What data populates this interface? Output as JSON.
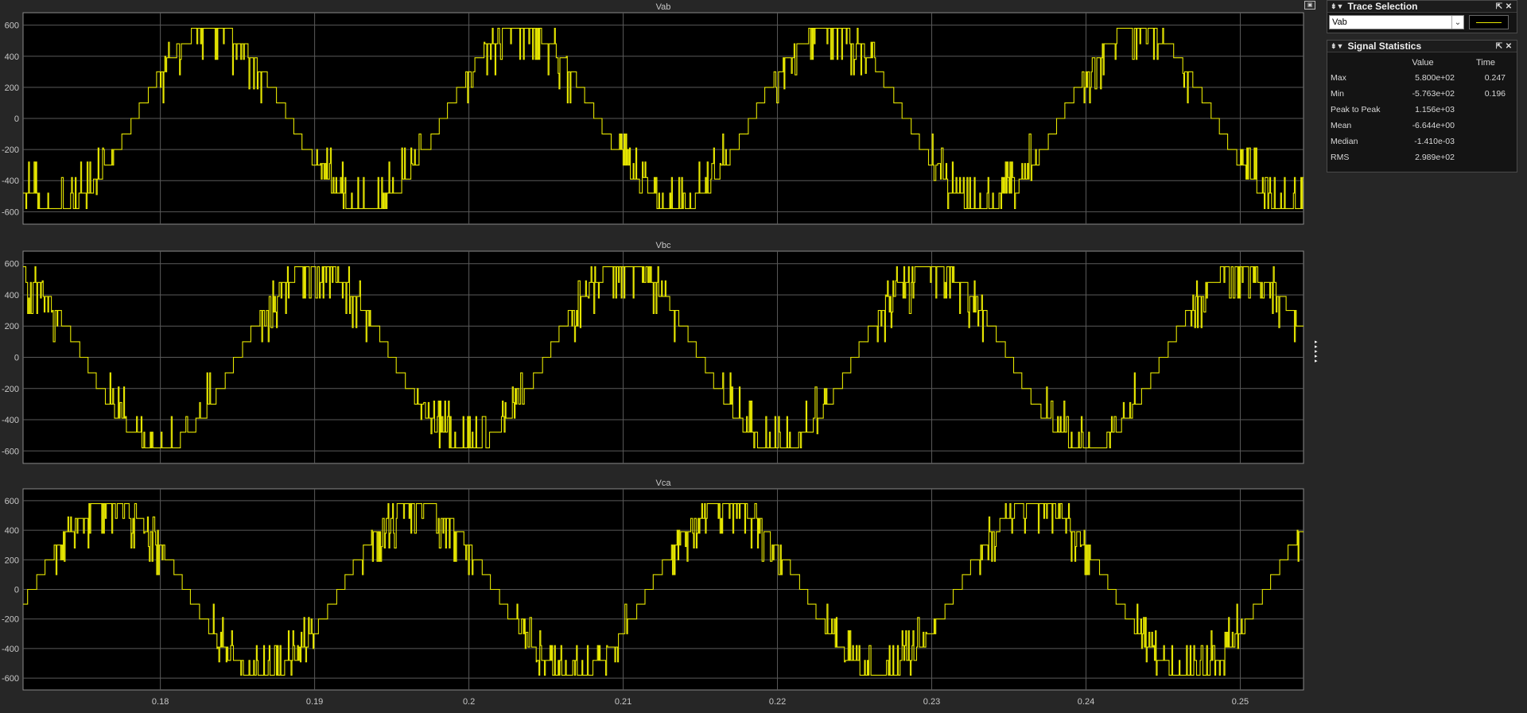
{
  "window": {
    "dock_toggle_icon": "dock-toggle-icon"
  },
  "trace_selection": {
    "title": "Trace Selection",
    "selected_signal": "Vab",
    "line_color": "#e6e600"
  },
  "signal_statistics": {
    "title": "Signal Statistics",
    "columns": [
      "",
      "Value",
      "Time"
    ],
    "rows": [
      {
        "label": "Max",
        "value": "5.800e+02",
        "time": "0.247"
      },
      {
        "label": "Min",
        "value": "-5.763e+02",
        "time": "0.196"
      },
      {
        "label": "Peak to Peak",
        "value": "1.156e+03",
        "time": ""
      },
      {
        "label": "Mean",
        "value": "-6.644e+00",
        "time": ""
      },
      {
        "label": "Median",
        "value": "-1.410e-03",
        "time": ""
      },
      {
        "label": "RMS",
        "value": "2.989e+02",
        "time": ""
      }
    ]
  },
  "colors": {
    "background": "#262626",
    "axes_background": "#000000",
    "grid": "#5a5a5a",
    "trace": "#e6e600",
    "text": "#c8c8c8"
  },
  "chart_data": [
    {
      "type": "line",
      "title": "Vab",
      "xlabel": "",
      "ylabel": "",
      "xlim": [
        0.1711,
        0.2541
      ],
      "ylim": [
        -680,
        680
      ],
      "xticks": [
        "0.18",
        "0.19",
        "0.2",
        "0.21",
        "0.22",
        "0.23",
        "0.24",
        "0.25"
      ],
      "yticks": [
        "600",
        "400",
        "200",
        "0",
        "-200",
        "-400",
        "-600"
      ],
      "grid": true,
      "series": [
        {
          "phase_deg": 30,
          "amplitude": 580,
          "frequency_hz": 50,
          "color": "#e6e600"
        }
      ]
    },
    {
      "type": "line",
      "title": "Vbc",
      "xlabel": "",
      "ylabel": "",
      "xlim": [
        0.1711,
        0.2541
      ],
      "ylim": [
        -680,
        680
      ],
      "xticks": [
        "0.18",
        "0.19",
        "0.2",
        "0.21",
        "0.22",
        "0.23",
        "0.24",
        "0.25"
      ],
      "yticks": [
        "600",
        "400",
        "200",
        "0",
        "-200",
        "-400",
        "-600"
      ],
      "grid": true,
      "series": [
        {
          "phase_deg": -90,
          "amplitude": 580,
          "frequency_hz": 50,
          "color": "#e6e600"
        }
      ]
    },
    {
      "type": "line",
      "title": "Vca",
      "xlabel": "",
      "ylabel": "",
      "xlim": [
        0.1711,
        0.2541
      ],
      "ylim": [
        -680,
        680
      ],
      "xticks": [
        "0.18",
        "0.19",
        "0.2",
        "0.21",
        "0.22",
        "0.23",
        "0.24",
        "0.25"
      ],
      "yticks": [
        "600",
        "400",
        "200",
        "0",
        "-200",
        "-400",
        "-600"
      ],
      "grid": true,
      "series": [
        {
          "phase_deg": 150,
          "amplitude": 580,
          "frequency_hz": 50,
          "color": "#e6e600"
        }
      ]
    }
  ]
}
